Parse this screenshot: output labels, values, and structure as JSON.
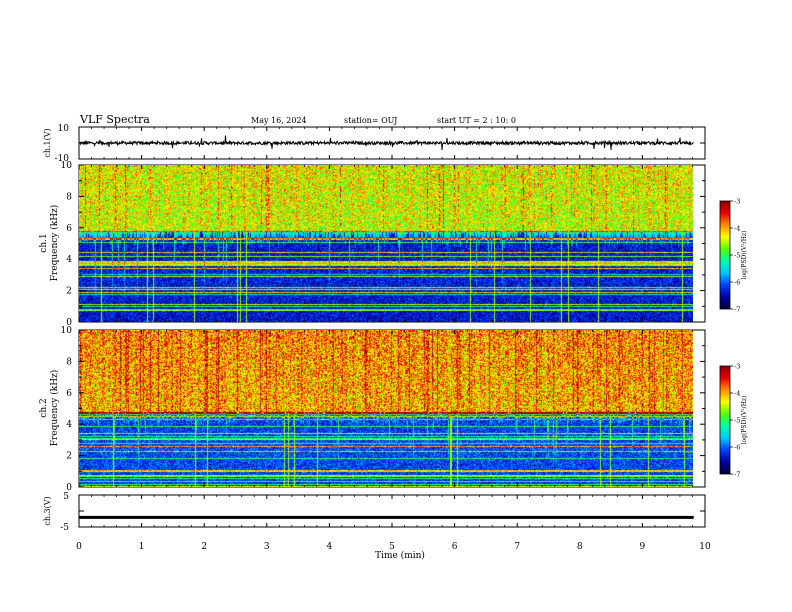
{
  "header": {
    "title": "VLF Spectra",
    "date": "May 16, 2024",
    "station": "station= OUJ",
    "start": "start  UT =   2 : 10: 0"
  },
  "chart_data": [
    {
      "type": "line",
      "panel": "ch1-waveform",
      "ylabel": "ch.1(V)",
      "ylim": [
        -10,
        10
      ],
      "yticks": [
        {
          "v": 10,
          "label": "10"
        },
        {
          "v": -10,
          "label": "-10"
        }
      ],
      "xlim": [
        0,
        10
      ],
      "description_values": {
        "baseline": 0,
        "noise_amplitude": 1.2,
        "spike_max": 2.8
      }
    },
    {
      "type": "heatmap",
      "panel": "ch1-spectrogram",
      "ylabel": "ch.1\nFrequency (kHz)",
      "ylim": [
        0,
        10
      ],
      "xlim": [
        0,
        9.82
      ],
      "yticks": [
        "0",
        "2",
        "4",
        "6",
        "8",
        "10"
      ],
      "colorbar": {
        "label": "log(PSD)(V²/Hz)",
        "range": [
          -7,
          -3
        ],
        "ticks": [
          "-3",
          "-4",
          "-5",
          "-6",
          "-7"
        ]
      },
      "low_band_upper_khz": 5.8,
      "high_band_level": -4.3,
      "low_band_level": -6.4
    },
    {
      "type": "heatmap",
      "panel": "ch2-spectrogram",
      "ylabel": "ch.2\nFrequency (kHz)",
      "ylim": [
        0,
        10
      ],
      "xlim": [
        0,
        9.82
      ],
      "yticks": [
        "0",
        "2",
        "4",
        "6",
        "8",
        "10"
      ],
      "colorbar": {
        "label": "log(PSD)(V²/Hz)",
        "range": [
          -7,
          -3
        ],
        "ticks": [
          "-3",
          "-4",
          "-5",
          "-6",
          "-7"
        ]
      },
      "low_band_upper_khz": 4.8,
      "high_band_level": -3.9,
      "low_band_level": -6.2
    },
    {
      "type": "line",
      "panel": "ch3-waveform",
      "ylabel": "ch.3(V)",
      "ylim": [
        -5,
        5
      ],
      "yticks": [
        {
          "v": 5,
          "label": "5"
        },
        {
          "v": -5,
          "label": "-5"
        }
      ],
      "xlim": [
        0,
        10
      ],
      "values_constant": -2
    }
  ],
  "xaxis": {
    "xlabel": "Time (min)",
    "ticks": [
      "0",
      "1",
      "2",
      "3",
      "4",
      "5",
      "6",
      "7",
      "8",
      "9",
      "10"
    ]
  },
  "colors": {
    "colormap": [
      "#00003c",
      "#0000a0",
      "#0040ff",
      "#00c8ff",
      "#00ffaa",
      "#50ff00",
      "#ffff00",
      "#ff8c00",
      "#e60000",
      "#8c0000"
    ]
  }
}
